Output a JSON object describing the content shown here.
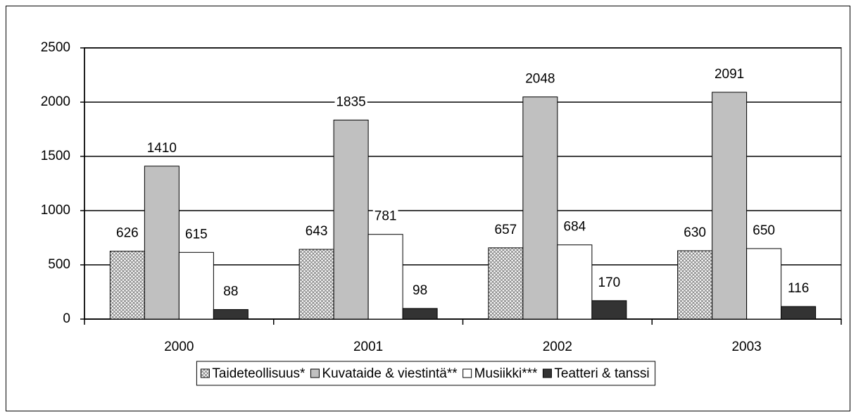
{
  "chart_data": {
    "type": "bar",
    "categories": [
      "2000",
      "2001",
      "2002",
      "2003"
    ],
    "series": [
      {
        "name": "Taideteollisuus*",
        "color": "#808080",
        "pattern": "crosshatch",
        "values": [
          626,
          643,
          657,
          630
        ]
      },
      {
        "name": "Kuvataide & viestintä**",
        "color": "#c0c0c0",
        "values": [
          1410,
          1835,
          2048,
          2091
        ]
      },
      {
        "name": "Musiikki***",
        "color": "#ffffff",
        "values": [
          615,
          781,
          684,
          650
        ]
      },
      {
        "name": "Teatteri & tanssi",
        "color": "#333333",
        "values": [
          88,
          98,
          170,
          116
        ]
      }
    ],
    "ylim": [
      0,
      2500
    ],
    "yticks": [
      0,
      500,
      1000,
      1500,
      2000,
      2500
    ],
    "grid": true,
    "legend": "bottom"
  }
}
